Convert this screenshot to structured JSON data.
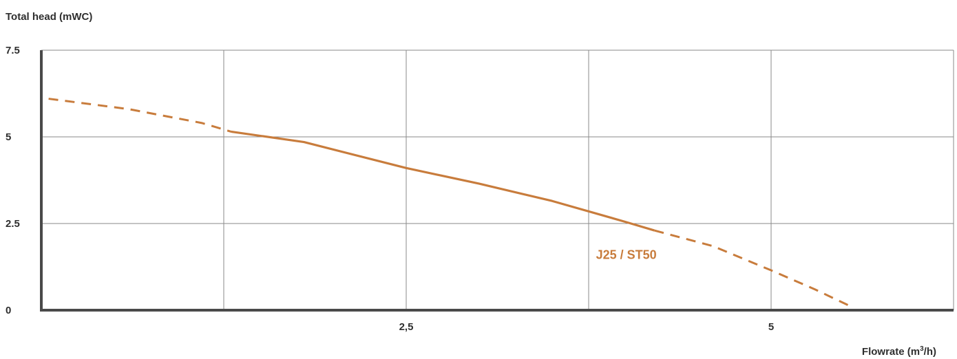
{
  "colors": {
    "curve": "#c87c3c",
    "axis": "#4a4a4a",
    "grid": "#8a8a8a"
  },
  "chart_data": {
    "type": "line",
    "title": "",
    "ylabel": "Total head (mWC)",
    "xlabel_main": "Flowrate (m",
    "xlabel_sup": "3",
    "xlabel_tail": "/h)",
    "xlim": [
      0,
      6.25
    ],
    "ylim": [
      0,
      7.5
    ],
    "x_ticks": [
      {
        "value": 2.5,
        "label": "2,5"
      },
      {
        "value": 5,
        "label": "5"
      }
    ],
    "y_ticks": [
      {
        "value": 0,
        "label": "0"
      },
      {
        "value": 2.5,
        "label": "2.5"
      },
      {
        "value": 5,
        "label": "5"
      },
      {
        "value": 7.5,
        "label": "7.5"
      }
    ],
    "x_grid": [
      1.25,
      2.5,
      3.75,
      5,
      6.25
    ],
    "y_grid": [
      2.5,
      5,
      7.5
    ],
    "grid": true,
    "series": [
      {
        "name": "J25 / ST50",
        "label_at": {
          "x": 3.8,
          "y": 1.6
        },
        "dashed_start": [
          [
            0.05,
            6.1
          ],
          [
            0.6,
            5.8
          ],
          [
            1.1,
            5.4
          ],
          [
            1.3,
            5.15
          ]
        ],
        "solid": [
          [
            1.3,
            5.15
          ],
          [
            1.8,
            4.85
          ],
          [
            2.5,
            4.1
          ],
          [
            3.0,
            3.65
          ],
          [
            3.5,
            3.15
          ],
          [
            4.0,
            2.55
          ],
          [
            4.2,
            2.3
          ]
        ],
        "dashed_end": [
          [
            4.2,
            2.3
          ],
          [
            4.6,
            1.85
          ],
          [
            5.0,
            1.15
          ],
          [
            5.3,
            0.6
          ],
          [
            5.55,
            0.1
          ]
        ]
      }
    ]
  }
}
